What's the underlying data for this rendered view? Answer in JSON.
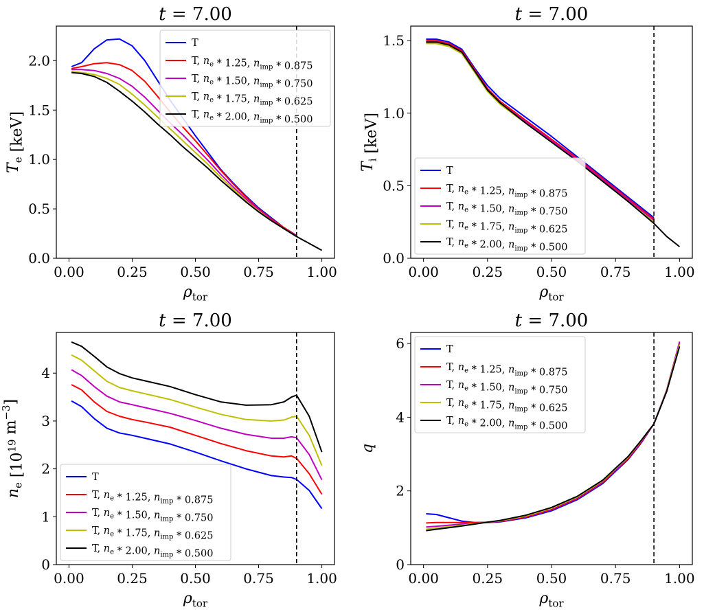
{
  "chart_data": [
    {
      "type": "line",
      "title": "t = 7.00",
      "xlabel": "ρtor",
      "ylabel": "Te [keV]",
      "xlim": [
        -0.05,
        1.05
      ],
      "ylim": [
        0.0,
        2.35
      ],
      "xticks": [
        "0.00",
        "0.25",
        "0.50",
        "0.75",
        "1.00"
      ],
      "yticks": [
        "0.0",
        "0.5",
        "1.0",
        "1.5",
        "2.0"
      ],
      "vline_x": 0.9,
      "legend_position": "top-right",
      "series": [
        {
          "name": "T",
          "color": "#0000ff",
          "x": [
            0.01,
            0.05,
            0.1,
            0.15,
            0.2,
            0.25,
            0.3,
            0.35,
            0.4,
            0.45,
            0.5,
            0.55,
            0.6,
            0.65,
            0.7,
            0.75,
            0.8,
            0.85,
            0.9
          ],
          "y": [
            1.94,
            1.98,
            2.12,
            2.21,
            2.22,
            2.15,
            2.0,
            1.8,
            1.6,
            1.42,
            1.24,
            1.07,
            0.9,
            0.76,
            0.63,
            0.51,
            0.41,
            0.31,
            0.23
          ]
        },
        {
          "name": "T, ne * 1.25, nimp * 0.875",
          "color": "#ff0000",
          "x": [
            0.01,
            0.05,
            0.1,
            0.15,
            0.2,
            0.25,
            0.3,
            0.35,
            0.4,
            0.45,
            0.5,
            0.55,
            0.6,
            0.65,
            0.7,
            0.75,
            0.8,
            0.85,
            0.9
          ],
          "y": [
            1.92,
            1.94,
            1.97,
            1.98,
            1.96,
            1.9,
            1.79,
            1.64,
            1.48,
            1.33,
            1.19,
            1.04,
            0.89,
            0.75,
            0.62,
            0.5,
            0.4,
            0.31,
            0.23
          ]
        },
        {
          "name": "T, ne * 1.50, nimp * 0.750",
          "color": "#c000c0",
          "x": [
            0.01,
            0.05,
            0.1,
            0.15,
            0.2,
            0.25,
            0.3,
            0.35,
            0.4,
            0.45,
            0.5,
            0.55,
            0.6,
            0.65,
            0.7,
            0.75,
            0.8,
            0.85,
            0.9
          ],
          "y": [
            1.91,
            1.91,
            1.9,
            1.87,
            1.82,
            1.74,
            1.63,
            1.5,
            1.37,
            1.25,
            1.12,
            0.99,
            0.85,
            0.72,
            0.6,
            0.49,
            0.39,
            0.3,
            0.23
          ]
        },
        {
          "name": "T, ne * 1.75, nimp * 0.625",
          "color": "#bfbf00",
          "x": [
            0.01,
            0.05,
            0.1,
            0.15,
            0.2,
            0.25,
            0.3,
            0.35,
            0.4,
            0.45,
            0.5,
            0.55,
            0.6,
            0.65,
            0.7,
            0.75,
            0.8,
            0.85,
            0.9
          ],
          "y": [
            1.89,
            1.88,
            1.86,
            1.82,
            1.76,
            1.66,
            1.55,
            1.43,
            1.31,
            1.19,
            1.07,
            0.95,
            0.82,
            0.7,
            0.58,
            0.48,
            0.38,
            0.3,
            0.22
          ]
        },
        {
          "name": "T, ne * 2.00, nimp * 0.500",
          "color": "#000000",
          "x": [
            0.01,
            0.05,
            0.1,
            0.15,
            0.2,
            0.25,
            0.3,
            0.35,
            0.4,
            0.45,
            0.5,
            0.55,
            0.6,
            0.65,
            0.7,
            0.75,
            0.8,
            0.85,
            0.9,
            0.95,
            1.0
          ],
          "y": [
            1.88,
            1.87,
            1.84,
            1.78,
            1.69,
            1.59,
            1.48,
            1.36,
            1.25,
            1.13,
            1.02,
            0.91,
            0.79,
            0.68,
            0.57,
            0.47,
            0.38,
            0.3,
            0.22,
            0.15,
            0.08
          ]
        }
      ]
    },
    {
      "type": "line",
      "title": "t = 7.00",
      "xlabel": "ρtor",
      "ylabel": "Ti [keV]",
      "xlim": [
        -0.05,
        1.05
      ],
      "ylim": [
        0.0,
        1.6
      ],
      "xticks": [
        "0.00",
        "0.25",
        "0.50",
        "0.75",
        "1.00"
      ],
      "yticks": [
        "0.0",
        "0.5",
        "1.0",
        "1.5"
      ],
      "vline_x": 0.9,
      "legend_position": "bottom-left",
      "series": [
        {
          "name": "T",
          "color": "#0000ff",
          "x": [
            0.01,
            0.05,
            0.1,
            0.15,
            0.2,
            0.25,
            0.3,
            0.4,
            0.5,
            0.6,
            0.7,
            0.8,
            0.9
          ],
          "y": [
            1.51,
            1.51,
            1.49,
            1.44,
            1.31,
            1.19,
            1.1,
            0.97,
            0.84,
            0.7,
            0.56,
            0.42,
            0.28
          ]
        },
        {
          "name": "T, ne * 1.25, nimp * 0.875",
          "color": "#ff0000",
          "x": [
            0.01,
            0.05,
            0.1,
            0.15,
            0.2,
            0.25,
            0.3,
            0.4,
            0.5,
            0.6,
            0.7,
            0.8,
            0.9
          ],
          "y": [
            1.5,
            1.5,
            1.48,
            1.43,
            1.3,
            1.17,
            1.08,
            0.95,
            0.82,
            0.69,
            0.55,
            0.41,
            0.27
          ]
        },
        {
          "name": "T, ne * 1.50, nimp * 0.750",
          "color": "#c000c0",
          "x": [
            0.01,
            0.05,
            0.1,
            0.15,
            0.2,
            0.25,
            0.3,
            0.4,
            0.5,
            0.6,
            0.7,
            0.8,
            0.9
          ],
          "y": [
            1.49,
            1.49,
            1.47,
            1.42,
            1.29,
            1.16,
            1.07,
            0.94,
            0.81,
            0.68,
            0.54,
            0.4,
            0.26
          ]
        },
        {
          "name": "T, ne * 1.75, nimp * 0.625",
          "color": "#bfbf00",
          "x": [
            0.01,
            0.05,
            0.1,
            0.15,
            0.2,
            0.25,
            0.3,
            0.4,
            0.5,
            0.6,
            0.7,
            0.8,
            0.9
          ],
          "y": [
            1.48,
            1.48,
            1.46,
            1.41,
            1.28,
            1.15,
            1.06,
            0.93,
            0.8,
            0.67,
            0.53,
            0.39,
            0.25
          ]
        },
        {
          "name": "T, ne * 2.00, nimp * 0.500",
          "color": "#000000",
          "x": [
            0.01,
            0.05,
            0.1,
            0.15,
            0.2,
            0.25,
            0.3,
            0.4,
            0.5,
            0.6,
            0.7,
            0.8,
            0.9,
            0.95,
            1.0
          ],
          "y": [
            1.49,
            1.49,
            1.47,
            1.42,
            1.29,
            1.16,
            1.07,
            0.93,
            0.8,
            0.67,
            0.53,
            0.39,
            0.24,
            0.15,
            0.08
          ]
        }
      ]
    },
    {
      "type": "line",
      "title": "t = 7.00",
      "xlabel": "ρtor",
      "ylabel": "ne [10^19 m^-3]",
      "xlim": [
        -0.05,
        1.05
      ],
      "ylim": [
        0.0,
        4.85
      ],
      "xticks": [
        "0.00",
        "0.25",
        "0.50",
        "0.75",
        "1.00"
      ],
      "yticks": [
        "0",
        "1",
        "2",
        "3",
        "4"
      ],
      "vline_x": 0.9,
      "legend_position": "bottom-left",
      "series": [
        {
          "name": "T",
          "color": "#0000ff",
          "x": [
            0.01,
            0.05,
            0.1,
            0.15,
            0.2,
            0.25,
            0.3,
            0.4,
            0.5,
            0.6,
            0.7,
            0.8,
            0.85,
            0.88,
            0.9,
            0.95,
            1.0
          ],
          "y": [
            3.42,
            3.3,
            3.05,
            2.85,
            2.75,
            2.7,
            2.64,
            2.52,
            2.35,
            2.17,
            2.0,
            1.86,
            1.83,
            1.82,
            1.78,
            1.55,
            1.17
          ]
        },
        {
          "name": "T, ne * 1.25, nimp * 0.875",
          "color": "#ff0000",
          "x": [
            0.01,
            0.05,
            0.1,
            0.15,
            0.2,
            0.25,
            0.3,
            0.4,
            0.5,
            0.6,
            0.7,
            0.8,
            0.85,
            0.88,
            0.9,
            0.95,
            1.0
          ],
          "y": [
            3.76,
            3.65,
            3.4,
            3.2,
            3.1,
            3.03,
            2.98,
            2.87,
            2.7,
            2.53,
            2.38,
            2.27,
            2.25,
            2.27,
            2.22,
            1.9,
            1.47
          ]
        },
        {
          "name": "T, ne * 1.50, nimp * 0.750",
          "color": "#c000c0",
          "x": [
            0.01,
            0.05,
            0.1,
            0.15,
            0.2,
            0.25,
            0.3,
            0.4,
            0.5,
            0.6,
            0.7,
            0.8,
            0.85,
            0.88,
            0.9,
            0.95,
            1.0
          ],
          "y": [
            4.07,
            3.95,
            3.72,
            3.52,
            3.4,
            3.34,
            3.28,
            3.16,
            3.01,
            2.85,
            2.72,
            2.64,
            2.64,
            2.67,
            2.65,
            2.3,
            1.77
          ]
        },
        {
          "name": "T, ne * 1.75, nimp * 0.625",
          "color": "#bfbf00",
          "x": [
            0.01,
            0.05,
            0.1,
            0.15,
            0.2,
            0.25,
            0.3,
            0.4,
            0.5,
            0.6,
            0.7,
            0.8,
            0.85,
            0.88,
            0.9,
            0.95,
            1.0
          ],
          "y": [
            4.38,
            4.27,
            4.05,
            3.83,
            3.7,
            3.63,
            3.57,
            3.45,
            3.29,
            3.14,
            3.03,
            3.0,
            3.02,
            3.08,
            3.1,
            2.7,
            2.07
          ]
        },
        {
          "name": "T, ne * 2.00, nimp * 0.500",
          "color": "#000000",
          "x": [
            0.01,
            0.05,
            0.1,
            0.15,
            0.2,
            0.25,
            0.3,
            0.4,
            0.5,
            0.6,
            0.7,
            0.8,
            0.85,
            0.88,
            0.9,
            0.95,
            1.0
          ],
          "y": [
            4.65,
            4.56,
            4.35,
            4.13,
            3.99,
            3.9,
            3.84,
            3.72,
            3.55,
            3.4,
            3.33,
            3.34,
            3.4,
            3.5,
            3.54,
            3.1,
            2.35
          ]
        }
      ]
    },
    {
      "type": "line",
      "title": "t = 7.00",
      "xlabel": "ρtor",
      "ylabel": "q",
      "xlim": [
        -0.05,
        1.05
      ],
      "ylim": [
        0.0,
        6.3
      ],
      "xticks": [
        "0.00",
        "0.25",
        "0.50",
        "0.75",
        "1.00"
      ],
      "yticks": [
        "0",
        "2",
        "4",
        "6"
      ],
      "vline_x": 0.9,
      "legend_position": "top-left",
      "series": [
        {
          "name": "T",
          "color": "#0000ff",
          "x": [
            0.01,
            0.05,
            0.1,
            0.15,
            0.2,
            0.25,
            0.3,
            0.4,
            0.5,
            0.6,
            0.7,
            0.8,
            0.85,
            0.9,
            0.95,
            1.0
          ],
          "y": [
            1.38,
            1.36,
            1.27,
            1.18,
            1.14,
            1.14,
            1.16,
            1.27,
            1.46,
            1.76,
            2.2,
            2.86,
            3.3,
            3.82,
            4.7,
            6.0
          ]
        },
        {
          "name": "T, ne * 1.25, nimp * 0.875",
          "color": "#ff0000",
          "x": [
            0.01,
            0.05,
            0.1,
            0.15,
            0.2,
            0.25,
            0.3,
            0.4,
            0.5,
            0.6,
            0.7,
            0.8,
            0.85,
            0.9,
            0.95,
            1.0
          ],
          "y": [
            1.13,
            1.14,
            1.14,
            1.14,
            1.14,
            1.15,
            1.17,
            1.29,
            1.49,
            1.79,
            2.23,
            2.88,
            3.32,
            3.82,
            4.72,
            6.02
          ]
        },
        {
          "name": "T, ne * 1.50, nimp * 0.750",
          "color": "#c000c0",
          "x": [
            0.01,
            0.05,
            0.1,
            0.15,
            0.2,
            0.25,
            0.3,
            0.4,
            0.5,
            0.6,
            0.7,
            0.8,
            0.85,
            0.9,
            0.95,
            1.0
          ],
          "y": [
            1.02,
            1.04,
            1.07,
            1.1,
            1.12,
            1.15,
            1.18,
            1.31,
            1.51,
            1.81,
            2.25,
            2.9,
            3.34,
            3.82,
            4.74,
            6.05
          ]
        },
        {
          "name": "T, ne * 1.75, nimp * 0.625",
          "color": "#bfbf00",
          "x": [
            0.01,
            0.05,
            0.1,
            0.15,
            0.2,
            0.25,
            0.3,
            0.4,
            0.5,
            0.6,
            0.7,
            0.8,
            0.85,
            0.9,
            0.95,
            1.0
          ],
          "y": [
            0.96,
            0.99,
            1.03,
            1.07,
            1.11,
            1.15,
            1.19,
            1.32,
            1.53,
            1.83,
            2.27,
            2.92,
            3.36,
            3.82,
            4.72,
            5.98
          ]
        },
        {
          "name": "T, ne * 2.00, nimp * 0.500",
          "color": "#000000",
          "x": [
            0.01,
            0.05,
            0.1,
            0.15,
            0.2,
            0.25,
            0.3,
            0.4,
            0.5,
            0.6,
            0.7,
            0.8,
            0.85,
            0.9,
            0.95,
            1.0
          ],
          "y": [
            0.92,
            0.96,
            1.0,
            1.05,
            1.1,
            1.15,
            1.2,
            1.34,
            1.55,
            1.85,
            2.29,
            2.94,
            3.37,
            3.82,
            4.7,
            5.92
          ]
        }
      ]
    }
  ]
}
